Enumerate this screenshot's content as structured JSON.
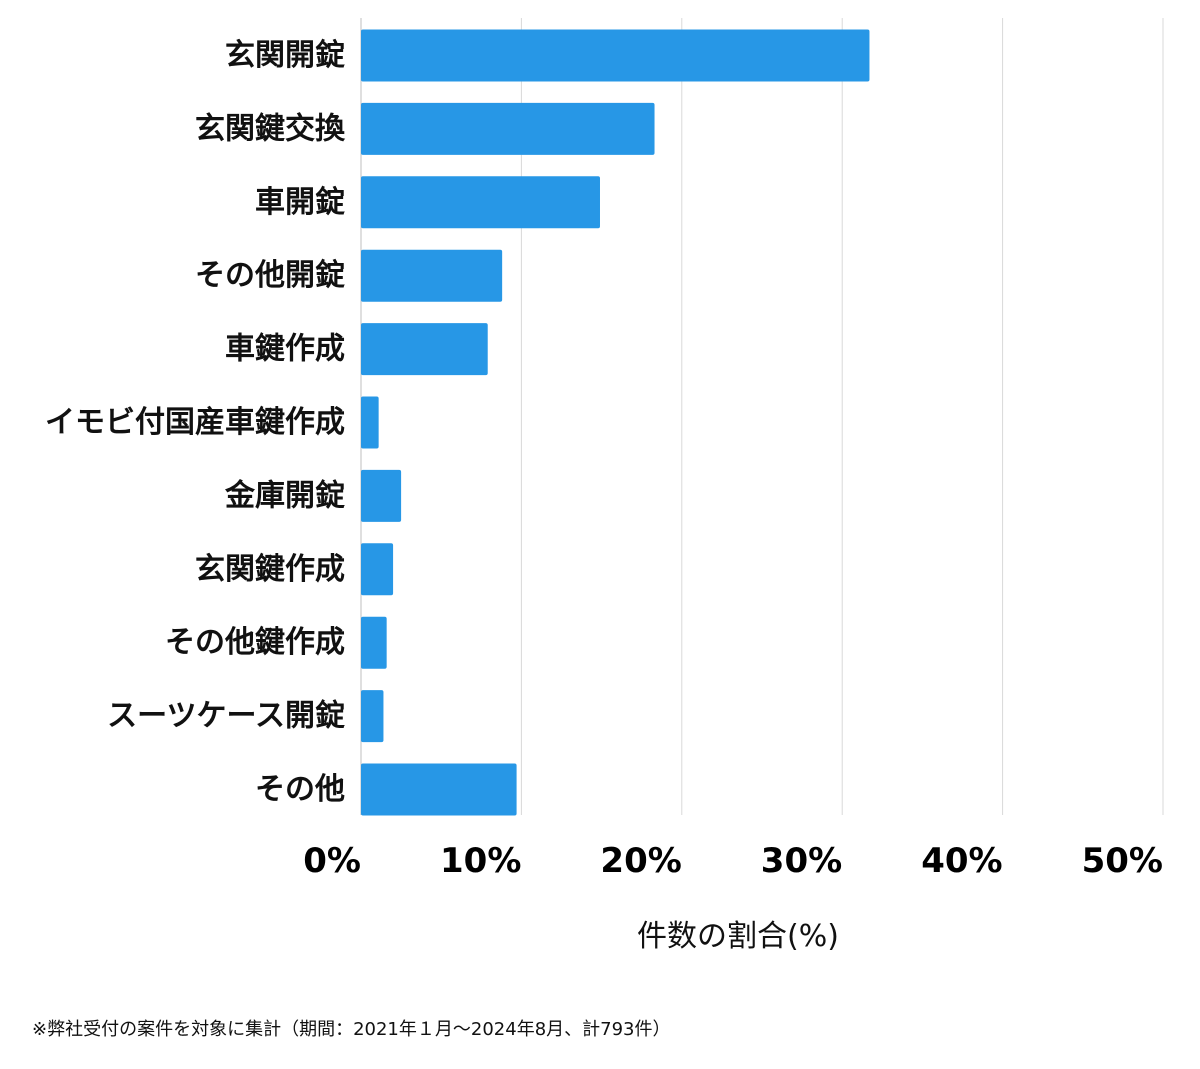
{
  "colors": {
    "bar": "#2797e6",
    "grid": "#d9d9d9",
    "axis": "#bfbfbf",
    "text": "#111111"
  },
  "footnote": "※弊社受付の案件を対象に集計（期間：2021年１月〜2024年8月、計793件）",
  "chart_data": {
    "type": "bar",
    "orientation": "horizontal",
    "categories": [
      "玄関開錠",
      "玄関鍵交換",
      "車開錠",
      "その他開錠",
      "車鍵作成",
      "イモビ付国産車鍵作成",
      "金庫開錠",
      "玄関鍵作成",
      "その他鍵作成",
      "スーツケース開錠",
      "その他"
    ],
    "values": [
      31.7,
      18.3,
      14.9,
      8.8,
      7.9,
      1.1,
      2.5,
      2.0,
      1.6,
      1.4,
      9.7
    ],
    "xlabel": "件数の割合(%)",
    "ylabel": "",
    "xlim": [
      0,
      50
    ],
    "xticks": [
      0,
      10,
      20,
      30,
      40,
      50
    ],
    "xtick_labels": [
      "0%",
      "10%",
      "20%",
      "30%",
      "40%",
      "50%"
    ],
    "grid": true,
    "legend": "none"
  }
}
